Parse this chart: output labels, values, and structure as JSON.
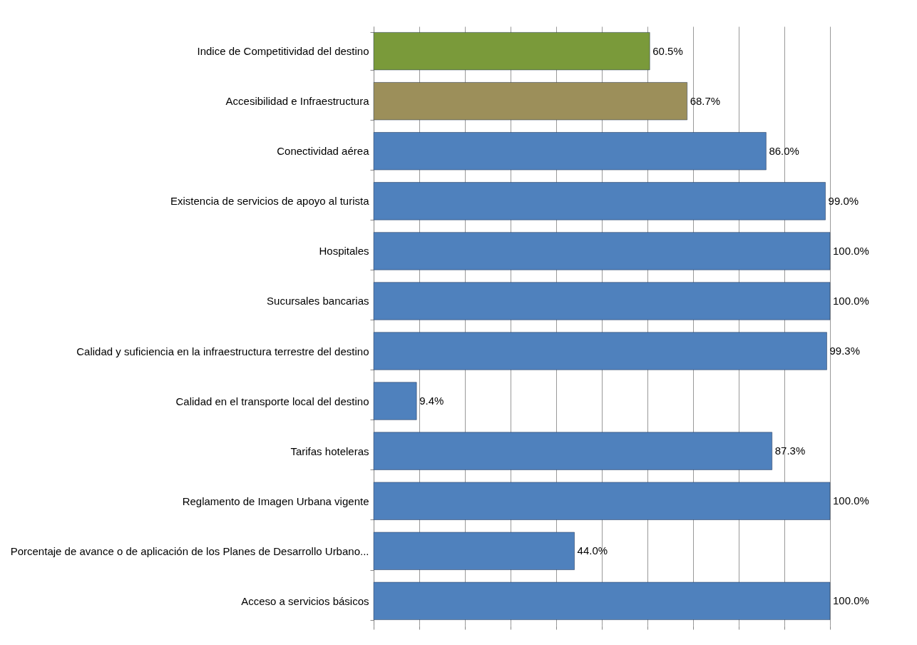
{
  "chart_data": {
    "type": "bar",
    "orientation": "horizontal",
    "categories": [
      "Indice de Competitividad del destino",
      "Accesibilidad e Infraestructura",
      "Conectividad aérea",
      "Existencia de servicios de apoyo al turista",
      "Hospitales",
      "Sucursales bancarias",
      "Calidad y suficiencia en la infraestructura terrestre  del  destino",
      "Calidad en el transporte local del destino",
      "Tarifas hoteleras",
      "Reglamento de Imagen Urbana  vigente",
      "Porcentaje de avance o de aplicación de los Planes de Desarrollo  Urbano...",
      "Acceso a servicios básicos"
    ],
    "values": [
      60.5,
      68.7,
      86.0,
      99.0,
      100.0,
      100.0,
      99.3,
      9.4,
      87.3,
      100.0,
      44.0,
      100.0
    ],
    "value_labels": [
      "60.5%",
      "68.7%",
      "86.0%",
      "99.0%",
      "100.0%",
      "100.0%",
      "99.3%",
      "9.4%",
      "87.3%",
      "100.0%",
      "44.0%",
      "100.0%"
    ],
    "colors": [
      "#7a9a3a",
      "#9c8f5a",
      "#4f81bd",
      "#4f81bd",
      "#4f81bd",
      "#4f81bd",
      "#4f81bd",
      "#4f81bd",
      "#4f81bd",
      "#4f81bd",
      "#4f81bd",
      "#4f81bd"
    ],
    "xlim": [
      0,
      100
    ],
    "xticks": [
      {
        "value": 0,
        "label": null
      },
      {
        "value": 10,
        "label": null
      },
      {
        "value": 20,
        "label": null
      },
      {
        "value": 30,
        "label": null
      },
      {
        "value": 40,
        "label": null
      },
      {
        "value": 50,
        "label": null
      },
      {
        "value": 60,
        "label": null
      },
      {
        "value": 70,
        "label": null
      },
      {
        "value": 80,
        "label": null
      },
      {
        "value": 90,
        "label": null
      },
      {
        "value": 100,
        "label": null
      }
    ],
    "tick_labels": "y",
    "grid": "x",
    "legend": false
  }
}
